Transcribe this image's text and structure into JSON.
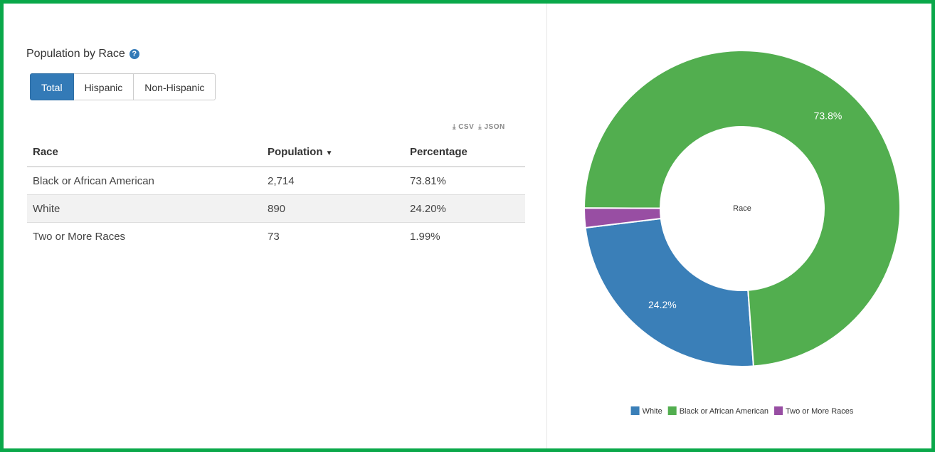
{
  "header": {
    "title": "Population by Race"
  },
  "tabs": [
    "Total",
    "Hispanic",
    "Non-Hispanic"
  ],
  "active_tab": 0,
  "downloads": [
    "CSV",
    "JSON"
  ],
  "table": {
    "columns": [
      "Race",
      "Population",
      "Percentage"
    ],
    "rows": [
      [
        "Black or African American",
        "2,714",
        "73.81%"
      ],
      [
        "White",
        "890",
        "24.20%"
      ],
      [
        "Two or More Races",
        "73",
        "1.99%"
      ]
    ]
  },
  "chart_data": {
    "type": "donut",
    "center_label": "Race",
    "categories": [
      "White",
      "Black or African American",
      "Two or More Races"
    ],
    "values": [
      24.2,
      73.8,
      2.0
    ],
    "value_labels": [
      "24.2%",
      "73.8%",
      null
    ],
    "colors": [
      "#3a7fb8",
      "#52ae4f",
      "#984ea3"
    ]
  }
}
